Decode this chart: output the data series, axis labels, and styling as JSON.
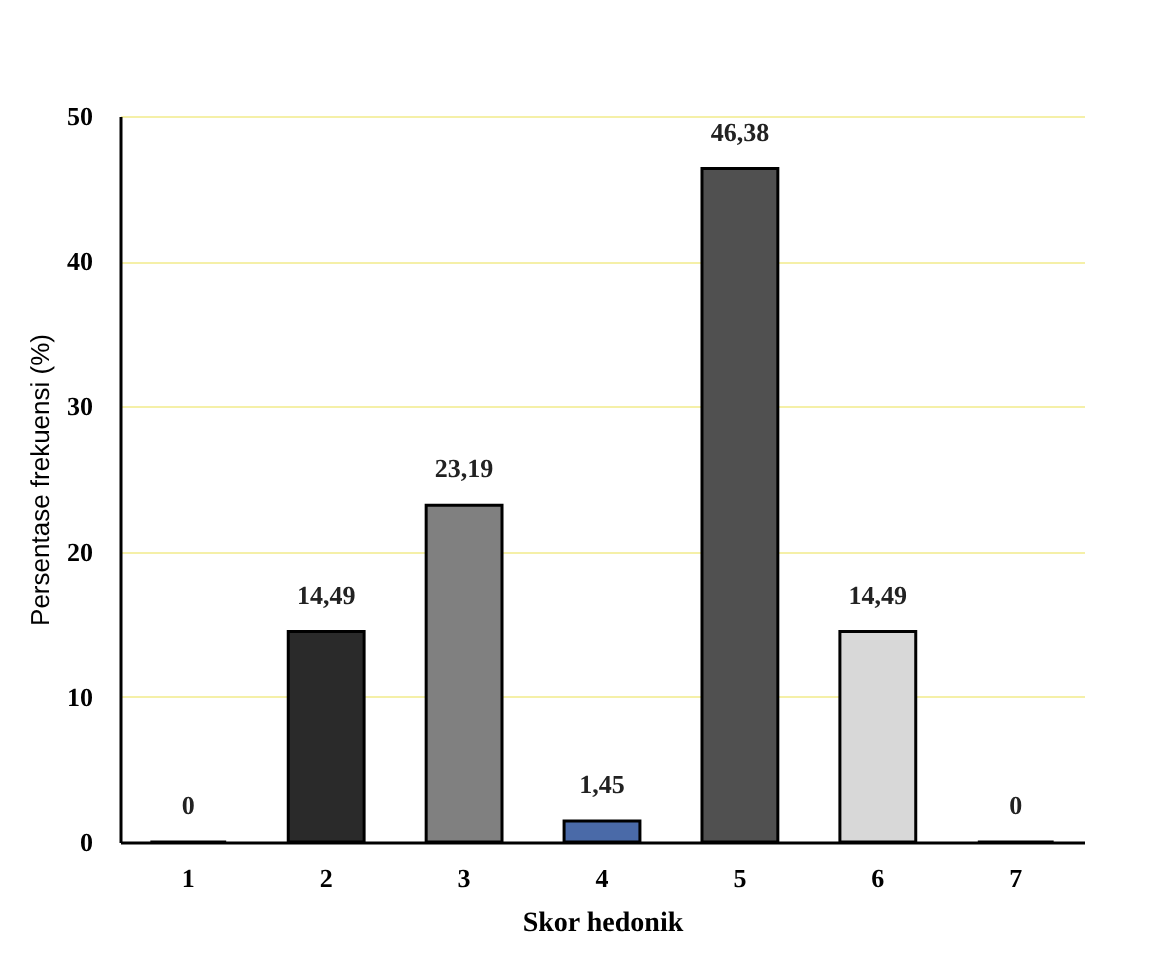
{
  "chart_data": {
    "type": "bar",
    "xlabel": "Skor hedonik",
    "ylabel": "Persentase frekuensi (%)",
    "categories": [
      "1",
      "2",
      "3",
      "4",
      "5",
      "6",
      "7"
    ],
    "values": [
      0,
      14.49,
      23.19,
      1.45,
      46.38,
      14.49,
      0
    ],
    "value_labels": [
      "0",
      "14,49",
      "23,19",
      "1,45",
      "46,38",
      "14,49",
      "0"
    ],
    "colors": [
      "#222222",
      "#2a2a2a",
      "#808080",
      "#4a6aa8",
      "#505050",
      "#d8d8d8",
      "#222222"
    ],
    "ylim": [
      0,
      50
    ],
    "yticks": [
      0,
      10,
      20,
      30,
      40,
      50
    ],
    "grid": "y"
  }
}
